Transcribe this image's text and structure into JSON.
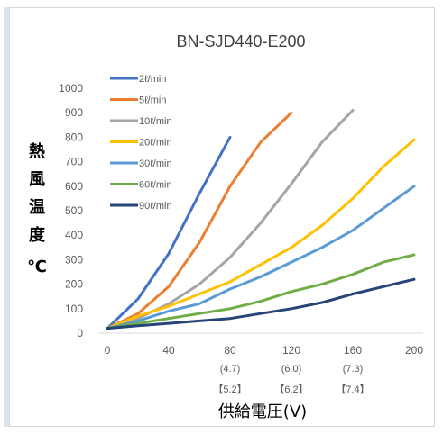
{
  "chart_data": {
    "type": "line",
    "title": "BN-SJD440-E200",
    "ylabel": "熱風温度 ℃",
    "xlabel": "供給電圧(V)",
    "x_ticks": [
      "0",
      "40",
      "80",
      "120",
      "160",
      "200"
    ],
    "x_ticks_extra": [
      {
        "x": 80,
        "line1": "(4.7)",
        "line2": "【5.2】"
      },
      {
        "x": 120,
        "line1": "(6.0)",
        "line2": "【6.2】"
      },
      {
        "x": 160,
        "line1": "(7.3)",
        "line2": "【7.4】"
      }
    ],
    "y_ticks": [
      "0",
      "100",
      "200",
      "300",
      "400",
      "500",
      "600",
      "700",
      "800",
      "900",
      "1000"
    ],
    "xlim": [
      0,
      200
    ],
    "ylim": [
      0,
      1000
    ],
    "grid": false,
    "legend_position": "top-left",
    "series": [
      {
        "name": "2ℓ/min",
        "color": "#4472C4",
        "x": [
          0,
          20,
          40,
          60,
          80
        ],
        "y": [
          20,
          140,
          325,
          570,
          800
        ]
      },
      {
        "name": "5ℓ/min",
        "color": "#ED7D31",
        "x": [
          0,
          20,
          40,
          60,
          80,
          100,
          120
        ],
        "y": [
          20,
          80,
          190,
          370,
          600,
          780,
          900
        ]
      },
      {
        "name": "10ℓ/min",
        "color": "#A5A5A5",
        "x": [
          0,
          20,
          40,
          60,
          80,
          100,
          120,
          140,
          160
        ],
        "y": [
          20,
          60,
          120,
          200,
          310,
          450,
          610,
          780,
          910
        ]
      },
      {
        "name": "20ℓ/min",
        "color": "#FFC000",
        "x": [
          0,
          20,
          40,
          60,
          80,
          100,
          120,
          140,
          160,
          180,
          200
        ],
        "y": [
          20,
          70,
          110,
          160,
          210,
          280,
          350,
          440,
          550,
          680,
          790
        ]
      },
      {
        "name": "30ℓ/min",
        "color": "#5B9BD5",
        "x": [
          0,
          20,
          40,
          60,
          80,
          100,
          120,
          140,
          160,
          180,
          200
        ],
        "y": [
          20,
          50,
          90,
          120,
          180,
          230,
          290,
          350,
          420,
          510,
          600
        ]
      },
      {
        "name": "60ℓ/min",
        "color": "#70AD47",
        "x": [
          0,
          20,
          40,
          60,
          80,
          100,
          120,
          140,
          160,
          180,
          200
        ],
        "y": [
          20,
          40,
          60,
          80,
          100,
          130,
          170,
          200,
          240,
          290,
          320
        ]
      },
      {
        "name": "90ℓ/min",
        "color": "#264478",
        "x": [
          0,
          20,
          40,
          60,
          80,
          100,
          120,
          140,
          160,
          180,
          200
        ],
        "y": [
          20,
          30,
          40,
          50,
          60,
          80,
          100,
          125,
          160,
          190,
          220
        ]
      }
    ]
  }
}
